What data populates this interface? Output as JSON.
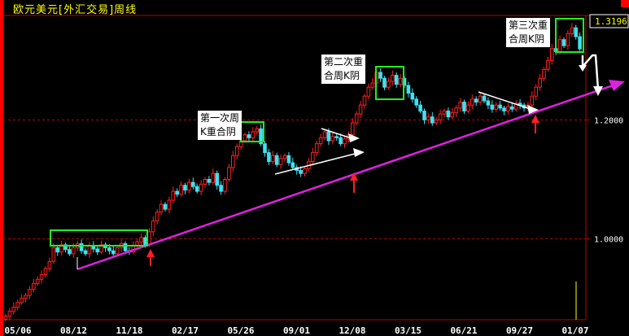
{
  "title": "欧元美元[外汇交易]周线",
  "last_price_label": "1.3196",
  "annotations": {
    "first": [
      "第一次周",
      "K重合阴"
    ],
    "second": [
      "第二次重",
      "合周K阴"
    ],
    "third": [
      "第三次重",
      "合周K阴"
    ]
  },
  "colors": {
    "up": "#ff2020",
    "down": "#40e0f0",
    "trendline": "#e020e0",
    "box": "#22ee22",
    "grid": "#c00000"
  },
  "chart_data": {
    "type": "candlestick",
    "title": "欧元美元[外汇交易]周线",
    "x_tick_labels": [
      "05/06",
      "08/12",
      "11/18",
      "02/17",
      "05/26",
      "09/01",
      "12/08",
      "03/15",
      "06/21",
      "09/27",
      "01/07"
    ],
    "y_tick_labels": [
      "1.2000",
      "1.0000"
    ],
    "ylim": [
      0.864,
      1.388
    ],
    "grid": "dashed at 1.0000 and 1.2000",
    "first_open": 0.865,
    "closes": [
      0.87,
      0.878,
      0.885,
      0.893,
      0.9,
      0.905,
      0.915,
      0.925,
      0.932,
      0.94,
      0.95,
      0.962,
      0.985,
      0.978,
      0.99,
      0.982,
      0.975,
      0.985,
      0.992,
      0.98,
      0.975,
      0.988,
      0.983,
      0.978,
      0.99,
      0.985,
      0.98,
      0.975,
      0.985,
      0.992,
      0.98,
      0.978,
      0.988,
      0.995,
      1.002,
      0.99,
      1.012,
      1.03,
      1.045,
      1.058,
      1.05,
      1.065,
      1.08,
      1.075,
      1.09,
      1.082,
      1.095,
      1.088,
      1.08,
      1.092,
      1.1,
      1.095,
      1.11,
      1.09,
      1.08,
      1.1,
      1.12,
      1.14,
      1.155,
      1.165,
      1.175,
      1.17,
      1.18,
      1.185,
      1.16,
      1.145,
      1.13,
      1.14,
      1.125,
      1.135,
      1.14,
      1.128,
      1.12,
      1.115,
      1.11,
      1.118,
      1.13,
      1.145,
      1.16,
      1.17,
      1.18,
      1.165,
      1.172,
      1.17,
      1.16,
      1.168,
      1.175,
      1.195,
      1.21,
      1.225,
      1.24,
      1.255,
      1.262,
      1.28,
      1.27,
      1.255,
      1.265,
      1.275,
      1.26,
      1.27,
      1.258,
      1.245,
      1.235,
      1.225,
      1.215,
      1.2,
      1.205,
      1.195,
      1.2,
      1.21,
      1.215,
      1.205,
      1.212,
      1.22,
      1.23,
      1.215,
      1.225,
      1.235,
      1.23,
      1.24,
      1.232,
      1.225,
      1.218,
      1.225,
      1.22,
      1.215,
      1.222,
      1.218,
      1.228,
      1.225,
      1.22,
      1.225,
      1.24,
      1.255,
      1.27,
      1.285,
      1.3,
      1.32,
      1.315,
      1.335,
      1.325,
      1.345,
      1.355,
      1.34,
      1.3196
    ]
  }
}
